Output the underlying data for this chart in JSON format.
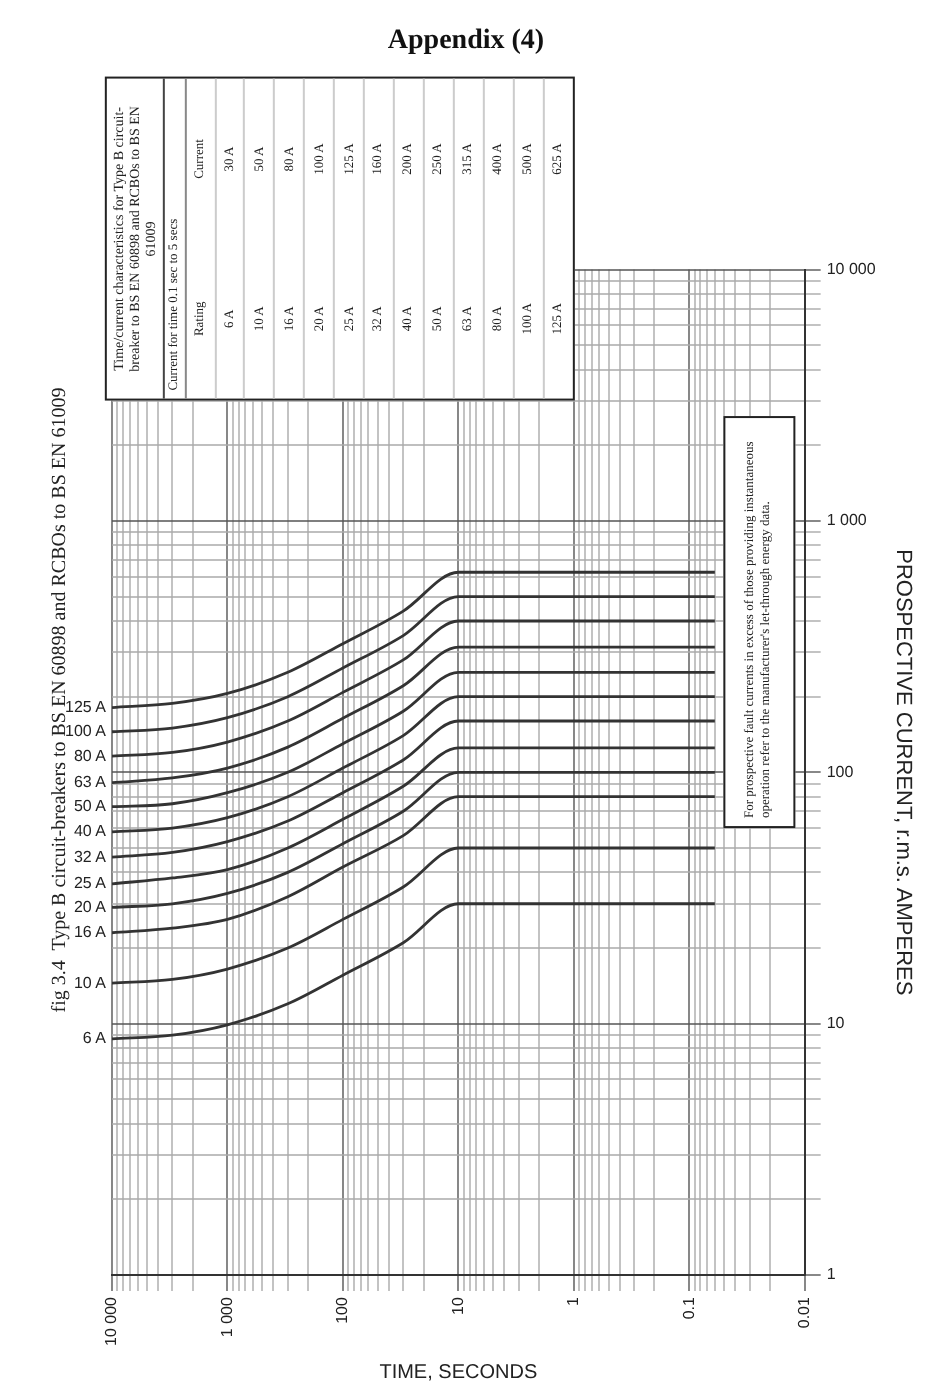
{
  "chart_data": {
    "type": "line",
    "title": "Appendix (4)",
    "subtitle": "fig 3.4  Type B circuit-breakers to BS EN 60898 and RCBOs to BS EN 61009",
    "xlabel": "TIME, SECONDS",
    "ylabel": "PROSPECTIVE CURRENT, r.m.s. AMPERES",
    "log": "xy",
    "grid": true,
    "legend": false,
    "marker": "none",
    "line_style": "solid",
    "xlim": [
      10000,
      0.01
    ],
    "ylim": [
      1,
      10000
    ],
    "xticks": [
      0.01,
      {
        "value": 0.02,
        "label": null
      },
      {
        "value": 0.03,
        "label": null
      },
      {
        "value": 0.04,
        "label": null
      },
      {
        "value": 0.05,
        "label": null
      },
      {
        "value": 0.06,
        "label": null
      },
      {
        "value": 0.07,
        "label": null
      },
      {
        "value": 0.08,
        "label": null
      },
      {
        "value": 0.09,
        "label": null
      },
      0.1,
      {
        "value": 0.2,
        "label": null
      },
      {
        "value": 0.3,
        "label": null
      },
      {
        "value": 0.4,
        "label": null
      },
      {
        "value": 0.5,
        "label": null
      },
      {
        "value": 0.6,
        "label": null
      },
      {
        "value": 0.7,
        "label": null
      },
      {
        "value": 0.8,
        "label": null
      },
      {
        "value": 0.9,
        "label": null
      },
      1,
      {
        "value": 2,
        "label": null
      },
      {
        "value": 3,
        "label": null
      },
      {
        "value": 4,
        "label": null
      },
      {
        "value": 5,
        "label": null
      },
      {
        "value": 6,
        "label": null
      },
      {
        "value": 7,
        "label": null
      },
      {
        "value": 8,
        "label": null
      },
      {
        "value": 9,
        "label": null
      },
      10,
      {
        "value": 20,
        "label": null
      },
      {
        "value": 30,
        "label": null
      },
      {
        "value": 40,
        "label": null
      },
      {
        "value": 50,
        "label": null
      },
      {
        "value": 60,
        "label": null
      },
      {
        "value": 70,
        "label": null
      },
      {
        "value": 80,
        "label": null
      },
      {
        "value": 90,
        "label": null
      },
      100,
      {
        "value": 200,
        "label": null
      },
      {
        "value": 300,
        "label": null
      },
      {
        "value": 400,
        "label": null
      },
      {
        "value": 500,
        "label": null
      },
      {
        "value": 600,
        "label": null
      },
      {
        "value": 700,
        "label": null
      },
      {
        "value": 800,
        "label": null
      },
      {
        "value": 900,
        "label": null
      },
      {
        "value": 1000,
        "label": "1 000"
      },
      {
        "value": 2000,
        "label": null
      },
      {
        "value": 3000,
        "label": null
      },
      {
        "value": 4000,
        "label": null
      },
      {
        "value": 5000,
        "label": null
      },
      {
        "value": 6000,
        "label": null
      },
      {
        "value": 7000,
        "label": null
      },
      {
        "value": 8000,
        "label": null
      },
      {
        "value": 9000,
        "label": null
      },
      {
        "value": 10000,
        "label": "10 000"
      }
    ],
    "yticks": [
      1,
      {
        "value": 2,
        "label": null
      },
      {
        "value": 3,
        "label": null
      },
      {
        "value": 4,
        "label": null
      },
      {
        "value": 5,
        "label": null
      },
      {
        "value": 6,
        "label": null
      },
      {
        "value": 7,
        "label": null
      },
      {
        "value": 8,
        "label": null
      },
      {
        "value": 9,
        "label": null
      },
      10,
      {
        "value": 20,
        "label": null
      },
      {
        "value": 30,
        "label": null
      },
      {
        "value": 40,
        "label": null
      },
      {
        "value": 50,
        "label": null
      },
      {
        "value": 60,
        "label": null
      },
      {
        "value": 70,
        "label": null
      },
      {
        "value": 80,
        "label": null
      },
      {
        "value": 90,
        "label": null
      },
      100,
      {
        "value": 200,
        "label": null
      },
      {
        "value": 300,
        "label": null
      },
      {
        "value": 400,
        "label": null
      },
      {
        "value": 500,
        "label": null
      },
      {
        "value": 600,
        "label": null
      },
      {
        "value": 700,
        "label": null
      },
      {
        "value": 800,
        "label": null
      },
      {
        "value": 900,
        "label": null
      },
      {
        "value": 1000,
        "label": "1 000"
      },
      {
        "value": 2000,
        "label": null
      },
      {
        "value": 3000,
        "label": null
      },
      {
        "value": 4000,
        "label": null
      },
      {
        "value": 5000,
        "label": null
      },
      {
        "value": 6000,
        "label": null
      },
      {
        "value": 7000,
        "label": null
      },
      {
        "value": 8000,
        "label": null
      },
      {
        "value": 9000,
        "label": null
      },
      {
        "value": 10000,
        "label": "10 000"
      }
    ],
    "series": [
      {
        "name": "6 A",
        "color": "#333333",
        "x": [
          10000,
          3000,
          1000,
          300,
          100,
          30,
          10,
          0.06
        ],
        "values": [
          8.7,
          9,
          9.9,
          12,
          15.6,
          21,
          30,
          30
        ]
      },
      {
        "name": "10 A",
        "color": "#333333",
        "x": [
          10000,
          3000,
          1000,
          300,
          100,
          30,
          10,
          0.06
        ],
        "values": [
          14.5,
          15,
          16.5,
          20,
          26,
          35,
          50,
          50
        ]
      },
      {
        "name": "16 A",
        "color": "#333333",
        "x": [
          10000,
          3000,
          1000,
          300,
          100,
          30,
          10,
          0.06
        ],
        "values": [
          23,
          24,
          26,
          32,
          42,
          56,
          80,
          80
        ]
      },
      {
        "name": "20 A",
        "color": "#333333",
        "x": [
          10000,
          3000,
          1000,
          300,
          100,
          30,
          10,
          0.06
        ],
        "values": [
          29,
          30,
          33,
          40,
          52,
          70,
          100,
          100
        ]
      },
      {
        "name": "25 A",
        "color": "#333333",
        "x": [
          10000,
          3000,
          1000,
          300,
          100,
          30,
          10,
          0.06
        ],
        "values": [
          36,
          38,
          41,
          50,
          65,
          88,
          125,
          125
        ]
      },
      {
        "name": "32 A",
        "color": "#333333",
        "x": [
          10000,
          3000,
          1000,
          300,
          100,
          30,
          10,
          0.06
        ],
        "values": [
          46,
          48,
          53,
          64,
          83,
          112,
          160,
          160
        ]
      },
      {
        "name": "40 A",
        "color": "#333333",
        "x": [
          10000,
          3000,
          1000,
          300,
          100,
          30,
          10,
          0.06
        ],
        "values": [
          58,
          60,
          66,
          80,
          104,
          140,
          200,
          200
        ]
      },
      {
        "name": "50 A",
        "color": "#333333",
        "x": [
          10000,
          3000,
          1000,
          300,
          100,
          30,
          10,
          0.06
        ],
        "values": [
          73,
          75,
          83,
          100,
          130,
          175,
          250,
          250
        ]
      },
      {
        "name": "63 A",
        "color": "#333333",
        "x": [
          10000,
          3000,
          1000,
          300,
          100,
          30,
          10,
          0.06
        ],
        "values": [
          91,
          95,
          104,
          126,
          164,
          221,
          315,
          315
        ]
      },
      {
        "name": "80 A",
        "color": "#333333",
        "x": [
          10000,
          3000,
          1000,
          300,
          100,
          30,
          10,
          0.06
        ],
        "values": [
          116,
          120,
          132,
          160,
          208,
          280,
          400,
          400
        ]
      },
      {
        "name": "100 A",
        "color": "#333333",
        "x": [
          10000,
          3000,
          1000,
          300,
          100,
          30,
          10,
          0.06
        ],
        "values": [
          145,
          150,
          165,
          200,
          260,
          350,
          500,
          500
        ]
      },
      {
        "name": "125 A",
        "color": "#333333",
        "x": [
          10000,
          3000,
          1000,
          300,
          100,
          30,
          10,
          0.06
        ],
        "values": [
          181,
          188,
          206,
          250,
          325,
          438,
          625,
          625
        ]
      }
    ],
    "annotations": [
      "Time/current characteristics for Type B circuit-breaker to BS EN 60898 and RCBOs to BS EN 61009",
      "Current for time 0.1 sec to 5 secs",
      "Rating",
      "Current",
      "6 A",
      "30 A",
      "10 A",
      "50 A",
      "16 A",
      "80 A",
      "20 A",
      "100 A",
      "25 A",
      "125 A",
      "32 A",
      "160 A",
      "40 A",
      "200 A",
      "50 A",
      "250 A",
      "63 A",
      "315 A",
      "80 A",
      "400 A",
      "100 A",
      "500 A",
      "125 A",
      "625 A",
      "For prospective fault currents in excess of those providing instantaneous operation refer to the manufacturer's let-through energy data."
    ]
  }
}
